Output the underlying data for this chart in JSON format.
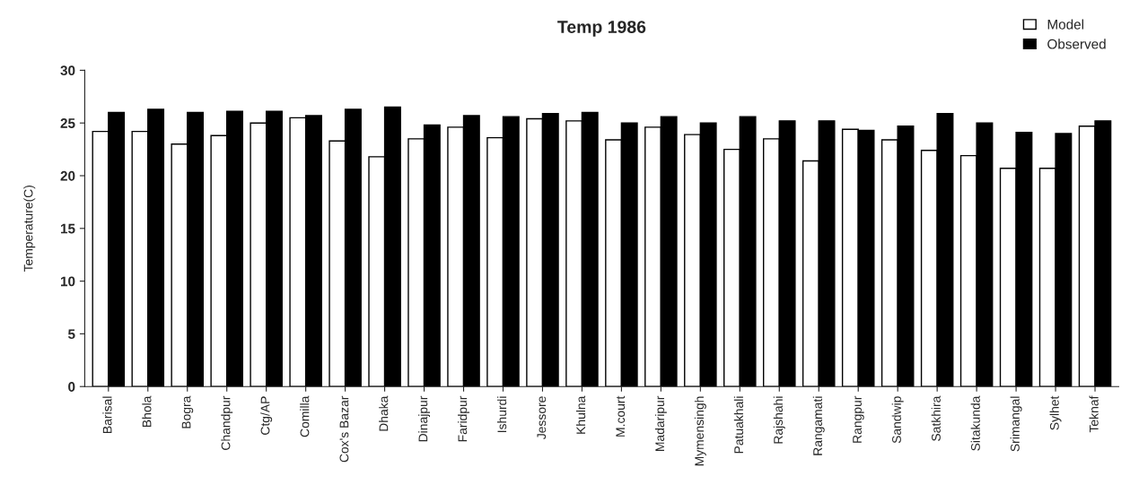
{
  "chart_data": {
    "type": "bar",
    "title": "Temp 1986",
    "ylabel": "Temperature(C)",
    "categories": [
      "Barisal",
      "Bhola",
      "Bogra",
      "Chandpur",
      "Ctg/AP",
      "Comilla",
      "Cox's Bazar",
      "Dhaka",
      "Dinajpur",
      "Faridpur",
      "Ishurdi",
      "Jessore",
      "Khulna",
      "M.court",
      "Madaripur",
      "Mymensingh",
      "Patuakhali",
      "Rajshahi",
      "Rangamati",
      "Rangpur",
      "Sandwip",
      "Satkhira",
      "Sitakunda",
      "Srimangal",
      "Sylhet",
      "Teknaf"
    ],
    "series": [
      {
        "name": "Model",
        "color": "#ffffff",
        "values": [
          24.2,
          24.2,
          23.0,
          23.8,
          25.0,
          25.5,
          23.3,
          21.8,
          23.5,
          24.6,
          23.6,
          25.4,
          25.2,
          23.4,
          24.6,
          23.9,
          22.5,
          23.5,
          21.4,
          24.4,
          23.4,
          22.4,
          21.9,
          20.7,
          20.7,
          24.7
        ]
      },
      {
        "name": "Observed",
        "color": "#000000",
        "values": [
          26.0,
          26.3,
          26.0,
          26.1,
          26.1,
          25.7,
          26.3,
          26.5,
          24.8,
          25.7,
          25.6,
          25.9,
          26.0,
          25.0,
          25.6,
          25.0,
          25.6,
          25.2,
          25.2,
          24.3,
          24.7,
          25.9,
          25.0,
          24.1,
          24.0,
          25.2
        ]
      }
    ],
    "ylim": [
      0,
      30
    ],
    "yticks": [
      0,
      5,
      10,
      15,
      20,
      25,
      30
    ],
    "grid": false,
    "legend": "top right"
  }
}
